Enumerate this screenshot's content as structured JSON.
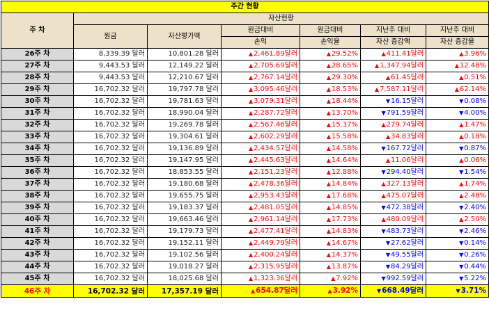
{
  "title": "주간 현황",
  "headers": {
    "week": "주 차",
    "group": "자산현황",
    "principal": "원금",
    "asset_value": "자산평가액",
    "pl_amount_1": "원금대비",
    "pl_amount_2": "손익",
    "pl_rate_1": "원금대비",
    "pl_rate_2": "손익율",
    "wow_amount_1": "지난주 대비",
    "wow_amount_2": "자산 증감액",
    "wow_rate_1": "지난주 대비",
    "wow_rate_2": "자산 증감율"
  },
  "arrows": {
    "up": "▲",
    "down": "▼"
  },
  "colors": {
    "title_bg": "#ffff00",
    "header_bg": "#ede2c9",
    "week_bg": "#d9d9d9",
    "up": "#ff0000",
    "down": "#0000ff",
    "current_row_bg": "#ffff00"
  },
  "rows": [
    {
      "week": "26주 차",
      "principal": "8,339.39 달러",
      "value": "10,801.28 달러",
      "pl": "2,461.89달러",
      "pl_dir": "up",
      "pl_rate": "29.52%",
      "pl_rate_dir": "up",
      "wow": "411.41달러",
      "wow_dir": "up",
      "wow_rate": "3.96%",
      "wow_rate_dir": "up"
    },
    {
      "week": "27주 차",
      "principal": "9,443.53 달러",
      "value": "12,149.22 달러",
      "pl": "2,705.69달러",
      "pl_dir": "up",
      "pl_rate": "28.65%",
      "pl_rate_dir": "up",
      "wow": "1,347.94달러",
      "wow_dir": "up",
      "wow_rate": "12.48%",
      "wow_rate_dir": "up"
    },
    {
      "week": "28주 차",
      "principal": "9,443.53 달러",
      "value": "12,210.67 달러",
      "pl": "2,767.14달러",
      "pl_dir": "up",
      "pl_rate": "29.30%",
      "pl_rate_dir": "up",
      "wow": "61.45달러",
      "wow_dir": "up",
      "wow_rate": "0.51%",
      "wow_rate_dir": "up"
    },
    {
      "week": "29주 차",
      "principal": "16,702.32 달러",
      "value": "19,797.78 달러",
      "pl": "3,095.46달러",
      "pl_dir": "up",
      "pl_rate": "18.53%",
      "pl_rate_dir": "up",
      "wow": "7,587.11달러",
      "wow_dir": "up",
      "wow_rate": "62.14%",
      "wow_rate_dir": "up"
    },
    {
      "week": "30주 차",
      "principal": "16,702.32 달러",
      "value": "19,781.63 달러",
      "pl": "3,079.31달러",
      "pl_dir": "up",
      "pl_rate": "18.44%",
      "pl_rate_dir": "up",
      "wow": "16.15달러",
      "wow_dir": "down",
      "wow_rate": "0.08%",
      "wow_rate_dir": "down"
    },
    {
      "week": "31주 차",
      "principal": "16,702.32 달러",
      "value": "18,990.04 달러",
      "pl": "2,287.72달러",
      "pl_dir": "up",
      "pl_rate": "13.70%",
      "pl_rate_dir": "up",
      "wow": "791.59달러",
      "wow_dir": "down",
      "wow_rate": "4.00%",
      "wow_rate_dir": "down"
    },
    {
      "week": "32주 차",
      "principal": "16,702.32 달러",
      "value": "19,269.78 달러",
      "pl": "2,567.46달러",
      "pl_dir": "up",
      "pl_rate": "15.37%",
      "pl_rate_dir": "up",
      "wow": "279.74달러",
      "wow_dir": "up",
      "wow_rate": "1.47%",
      "wow_rate_dir": "up"
    },
    {
      "week": "33주 차",
      "principal": "16,702.32 달러",
      "value": "19,304.61 달러",
      "pl": "2,602.29달러",
      "pl_dir": "up",
      "pl_rate": "15.58%",
      "pl_rate_dir": "up",
      "wow": "34.83달러",
      "wow_dir": "up",
      "wow_rate": "0.18%",
      "wow_rate_dir": "up"
    },
    {
      "week": "34주 차",
      "principal": "16,702.32 달러",
      "value": "19,136.89 달러",
      "pl": "2,434.57달러",
      "pl_dir": "up",
      "pl_rate": "14.58%",
      "pl_rate_dir": "up",
      "wow": "167.72달러",
      "wow_dir": "down",
      "wow_rate": "0.87%",
      "wow_rate_dir": "down"
    },
    {
      "week": "35주 차",
      "principal": "16,702.32 달러",
      "value": "19,147.95 달러",
      "pl": "2,445.63달러",
      "pl_dir": "up",
      "pl_rate": "14.64%",
      "pl_rate_dir": "up",
      "wow": "11.06달러",
      "wow_dir": "up",
      "wow_rate": "0.06%",
      "wow_rate_dir": "up"
    },
    {
      "week": "36주 차",
      "principal": "16,702.32 달러",
      "value": "18,853.55 달러",
      "pl": "2,151.23달러",
      "pl_dir": "up",
      "pl_rate": "12.88%",
      "pl_rate_dir": "up",
      "wow": "294.40달러",
      "wow_dir": "down",
      "wow_rate": "1.54%",
      "wow_rate_dir": "down"
    },
    {
      "week": "37주 차",
      "principal": "16,702.32 달러",
      "value": "19,180.68 달러",
      "pl": "2,478.36달러",
      "pl_dir": "up",
      "pl_rate": "14.84%",
      "pl_rate_dir": "up",
      "wow": "327.13달러",
      "wow_dir": "up",
      "wow_rate": "1.74%",
      "wow_rate_dir": "up"
    },
    {
      "week": "38주 차",
      "principal": "16,702.32 달러",
      "value": "19,655.75 달러",
      "pl": "2,953.43달러",
      "pl_dir": "up",
      "pl_rate": "17.68%",
      "pl_rate_dir": "up",
      "wow": "475.07달러",
      "wow_dir": "up",
      "wow_rate": "2.48%",
      "wow_rate_dir": "up"
    },
    {
      "week": "39주 차",
      "principal": "16,702.32 달러",
      "value": "19,183.37 달러",
      "pl": "2,481.05달러",
      "pl_dir": "up",
      "pl_rate": "14.85%",
      "pl_rate_dir": "up",
      "wow": "472.38달러",
      "wow_dir": "down",
      "wow_rate": "2.40%",
      "wow_rate_dir": "down"
    },
    {
      "week": "40주 차",
      "principal": "16,702.32 달러",
      "value": "19,663.46 달러",
      "pl": "2,961.14달러",
      "pl_dir": "up",
      "pl_rate": "17.73%",
      "pl_rate_dir": "up",
      "wow": "480.09달러",
      "wow_dir": "up",
      "wow_rate": "2.50%",
      "wow_rate_dir": "up"
    },
    {
      "week": "41주 차",
      "principal": "16,702.32 달러",
      "value": "19,179.73 달러",
      "pl": "2,477.41달러",
      "pl_dir": "up",
      "pl_rate": "14.83%",
      "pl_rate_dir": "up",
      "wow": "483.73달러",
      "wow_dir": "down",
      "wow_rate": "2.46%",
      "wow_rate_dir": "down"
    },
    {
      "week": "42주 차",
      "principal": "16,702.32 달러",
      "value": "19,152.11 달러",
      "pl": "2,449.79달러",
      "pl_dir": "up",
      "pl_rate": "14.67%",
      "pl_rate_dir": "up",
      "wow": "27.62달러",
      "wow_dir": "down",
      "wow_rate": "0.14%",
      "wow_rate_dir": "down"
    },
    {
      "week": "43주 차",
      "principal": "16,702.32 달러",
      "value": "19,102.56 달러",
      "pl": "2,400.24달러",
      "pl_dir": "up",
      "pl_rate": "14.37%",
      "pl_rate_dir": "up",
      "wow": "49.55달러",
      "wow_dir": "down",
      "wow_rate": "0.26%",
      "wow_rate_dir": "down"
    },
    {
      "week": "44주 차",
      "principal": "16,702.32 달러",
      "value": "19,018.27 달러",
      "pl": "2,315.95달러",
      "pl_dir": "up",
      "pl_rate": "13.87%",
      "pl_rate_dir": "up",
      "wow": "84.29달러",
      "wow_dir": "down",
      "wow_rate": "0.44%",
      "wow_rate_dir": "down"
    },
    {
      "week": "45주 차",
      "principal": "16,702.32 달러",
      "value": "18,025.68 달러",
      "pl": "1,323.36달러",
      "pl_dir": "up",
      "pl_rate": "7.92%",
      "pl_rate_dir": "up",
      "wow": "992.59달러",
      "wow_dir": "down",
      "wow_rate": "5.22%",
      "wow_rate_dir": "down"
    },
    {
      "week": "46주 차",
      "principal": "16,702.32 달러",
      "value": "17,357.19 달러",
      "pl": "654.87달러",
      "pl_dir": "up",
      "pl_rate": "3.92%",
      "pl_rate_dir": "up",
      "wow": "668.49달러",
      "wow_dir": "down",
      "wow_rate": "3.71%",
      "wow_rate_dir": "down",
      "current": true
    }
  ]
}
